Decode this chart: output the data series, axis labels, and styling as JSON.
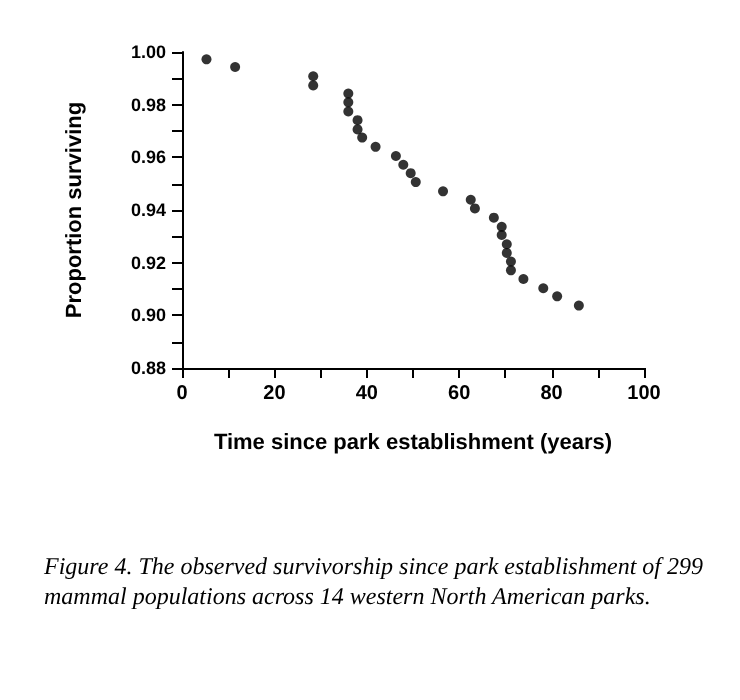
{
  "chart_data": {
    "type": "scatter",
    "xlabel": "Time since park establishment (years)",
    "ylabel": "Proportion surviving",
    "annotations": [
      "Figure 4. The observed survivorship since park establishment of 299 mammal populations across 14 western North American parks."
    ],
    "x": [
      5.3,
      11.5,
      28.4,
      28.4,
      36,
      36,
      36,
      38,
      38,
      39,
      41.9,
      46.3,
      47.9,
      49.5,
      50.6,
      56.5,
      62.5,
      63.4,
      67.5,
      69.2,
      69.2,
      70.3,
      70.3,
      71.2,
      71.2,
      73.9,
      78.2,
      81.2,
      85.9
    ],
    "series": [
      {
        "color": "#000000",
        "values": [
          0.9972,
          0.9943,
          0.9908,
          0.9873,
          0.9842,
          0.9809,
          0.9774,
          0.9741,
          0.9706,
          0.9675,
          0.964,
          0.9605,
          0.9572,
          0.954,
          0.9506,
          0.9471,
          0.9439,
          0.9406,
          0.9371,
          0.9336,
          0.9305,
          0.927,
          0.9237,
          0.9204,
          0.9171,
          0.9138,
          0.9103,
          0.9072,
          0.9037
        ]
      }
    ],
    "xlim": [
      0,
      100
    ],
    "xticks": [
      0,
      20,
      40,
      60,
      80,
      100
    ],
    "ylim": [
      0.88,
      1.0
    ],
    "yticks": [
      {
        "value": 0.88,
        "label": "0.88"
      },
      {
        "value": 0.9,
        "label": "0.90"
      },
      {
        "value": 0.92,
        "label": "0.92"
      },
      {
        "value": 0.94,
        "label": "0.94"
      },
      {
        "value": 0.96,
        "label": "0.96"
      },
      {
        "value": 0.98,
        "label": "0.98"
      },
      {
        "value": 1.0,
        "label": "1.00"
      }
    ],
    "grid": false,
    "marker": "circle"
  }
}
